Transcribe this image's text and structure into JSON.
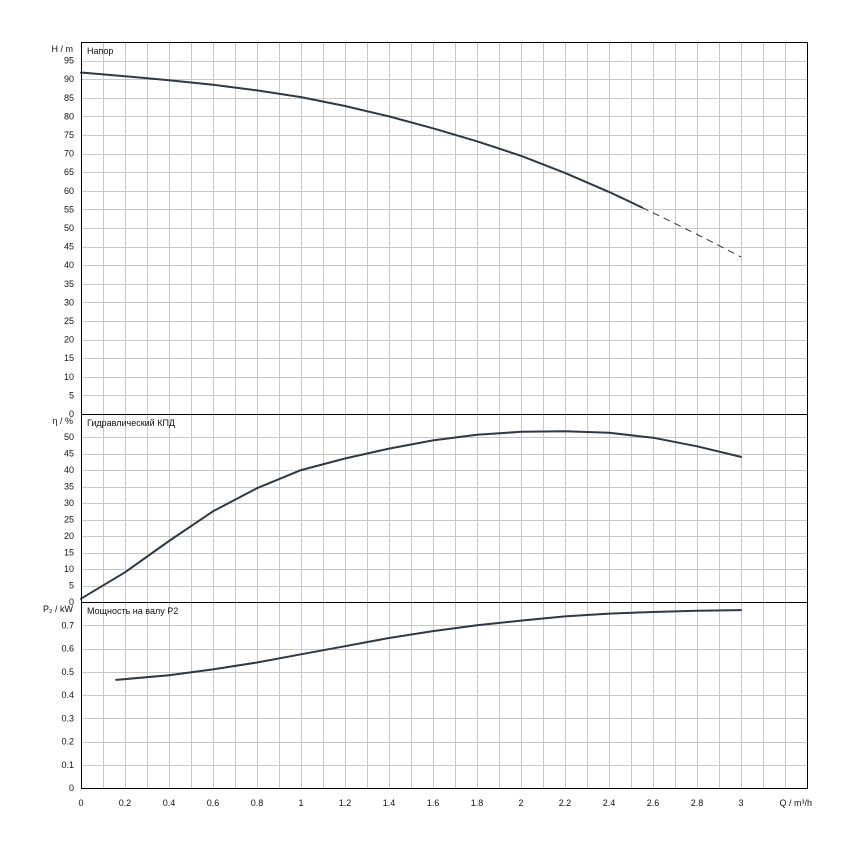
{
  "chart_data": [
    {
      "type": "line",
      "title": "Напор",
      "ylabel": "H / m",
      "ylim": [
        0,
        100
      ],
      "yticks": [
        "0",
        "5",
        "10",
        "15",
        "20",
        "25",
        "30",
        "35",
        "40",
        "45",
        "50",
        "55",
        "60",
        "65",
        "70",
        "75",
        "80",
        "85",
        "90",
        "95"
      ],
      "series": [
        {
          "style": "solid",
          "x": [
            0,
            0.2,
            0.4,
            0.6,
            0.8,
            1.0,
            1.2,
            1.4,
            1.6,
            1.8,
            2.0,
            2.2,
            2.4,
            2.55
          ],
          "y": [
            91.8,
            90.8,
            89.7,
            88.5,
            87.0,
            85.2,
            82.8,
            80.0,
            76.8,
            73.3,
            69.4,
            64.8,
            59.7,
            55.5
          ]
        },
        {
          "style": "dashed",
          "x": [
            2.55,
            2.7,
            2.85,
            3.0
          ],
          "y": [
            55.5,
            51.2,
            46.8,
            42.2
          ]
        }
      ]
    },
    {
      "type": "line",
      "title": "Гидравлический КПД",
      "ylabel": "η / %",
      "ylim": [
        0,
        57
      ],
      "yticks": [
        "0",
        "5",
        "10",
        "15",
        "20",
        "25",
        "30",
        "35",
        "40",
        "45",
        "50"
      ],
      "series": [
        {
          "style": "solid",
          "x": [
            0,
            0.2,
            0.4,
            0.6,
            0.8,
            1.0,
            1.2,
            1.4,
            1.6,
            1.8,
            2.0,
            2.2,
            2.4,
            2.6,
            2.8,
            3.0
          ],
          "y": [
            1,
            9,
            18.5,
            27.5,
            34.5,
            40,
            43.5,
            46.5,
            49,
            50.7,
            51.6,
            51.8,
            51.3,
            49.8,
            47.2,
            44
          ]
        }
      ]
    },
    {
      "type": "line",
      "title": "Мощность на валу P2",
      "ylabel": "P₂ / kW",
      "ylim": [
        0,
        0.8
      ],
      "yticks": [
        "0",
        "0.1",
        "0.2",
        "0.3",
        "0.4",
        "0.5",
        "0.6",
        "0.7"
      ],
      "xlabel": "Q / m³/h",
      "xlim": [
        0,
        3.3
      ],
      "xticks": [
        "0",
        "0.2",
        "0.4",
        "0.6",
        "0.8",
        "1",
        "1.2",
        "1.4",
        "1.6",
        "1.8",
        "2",
        "2.2",
        "2.4",
        "2.6",
        "2.8",
        "3"
      ],
      "series": [
        {
          "style": "solid",
          "x": [
            0.16,
            0.4,
            0.6,
            0.8,
            1.0,
            1.2,
            1.4,
            1.6,
            1.8,
            2.0,
            2.2,
            2.4,
            2.6,
            2.8,
            3.0
          ],
          "y": [
            0.465,
            0.485,
            0.51,
            0.54,
            0.575,
            0.61,
            0.645,
            0.675,
            0.7,
            0.72,
            0.738,
            0.75,
            0.757,
            0.762,
            0.765
          ]
        }
      ]
    }
  ]
}
